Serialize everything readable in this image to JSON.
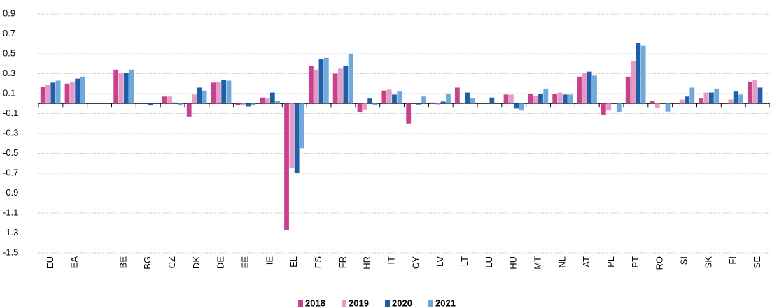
{
  "chart_data": {
    "type": "bar",
    "categories": [
      "EU",
      "EA",
      null,
      "BE",
      "BG",
      "CZ",
      "DK",
      "DE",
      "EE",
      "IE",
      "EL",
      "ES",
      "FR",
      "HR",
      "IT",
      "CY",
      "LV",
      "LT",
      "LU",
      "HU",
      "MT",
      "NL",
      "AT",
      "PL",
      "PT",
      "RO",
      "SI",
      "SK",
      "FI",
      "SE"
    ],
    "series": [
      {
        "name": "2018",
        "color": "#c8418c",
        "values": [
          0.17,
          0.2,
          null,
          0.34,
          0,
          0.07,
          -0.13,
          0.21,
          -0.02,
          0.06,
          -1.27,
          0.38,
          0.3,
          -0.09,
          0.13,
          -0.2,
          0.01,
          0.16,
          0,
          0.09,
          0.1,
          0.1,
          0.27,
          -0.11,
          0.27,
          0.03,
          0,
          0.05,
          0,
          0.22
        ]
      },
      {
        "name": "2019",
        "color": "#e59ac8",
        "values": [
          0.19,
          0.22,
          null,
          0.31,
          0,
          0.07,
          0.09,
          0.22,
          -0.02,
          0.05,
          -0.65,
          0.34,
          0.35,
          -0.06,
          0.14,
          0,
          -0.01,
          0.01,
          0,
          0.09,
          0.08,
          0.11,
          0.31,
          -0.07,
          0.43,
          -0.04,
          0.04,
          0.11,
          0.04,
          0.24
        ]
      },
      {
        "name": "2020",
        "color": "#1f5fa8",
        "values": [
          0.21,
          0.25,
          null,
          0.31,
          -0.02,
          0.01,
          0.16,
          0.24,
          -0.03,
          0.11,
          -0.7,
          0.45,
          0.38,
          0.05,
          0.09,
          -0.01,
          0.02,
          0.11,
          0.06,
          -0.05,
          0.1,
          0.09,
          0.32,
          0,
          0.61,
          0,
          0.07,
          0.11,
          0.12,
          0.16
        ]
      },
      {
        "name": "2021",
        "color": "#6fa8dc",
        "values": [
          0.23,
          0.27,
          null,
          0.34,
          0,
          -0.02,
          0.13,
          0.23,
          -0.02,
          0.03,
          -0.45,
          0.46,
          0.5,
          -0.02,
          0.12,
          0.07,
          0.1,
          0.05,
          0,
          -0.07,
          0.15,
          0.09,
          0.28,
          -0.09,
          0.58,
          -0.08,
          0.16,
          0.15,
          0.09,
          null
        ]
      }
    ],
    "ylim": [
      -1.5,
      0.9
    ],
    "yticks": [
      0.9,
      0.7,
      0.5,
      0.3,
      0.1,
      -0.1,
      -0.3,
      -0.5,
      -0.7,
      -0.9,
      -1.1,
      -1.3,
      -1.5
    ],
    "grid": true
  }
}
